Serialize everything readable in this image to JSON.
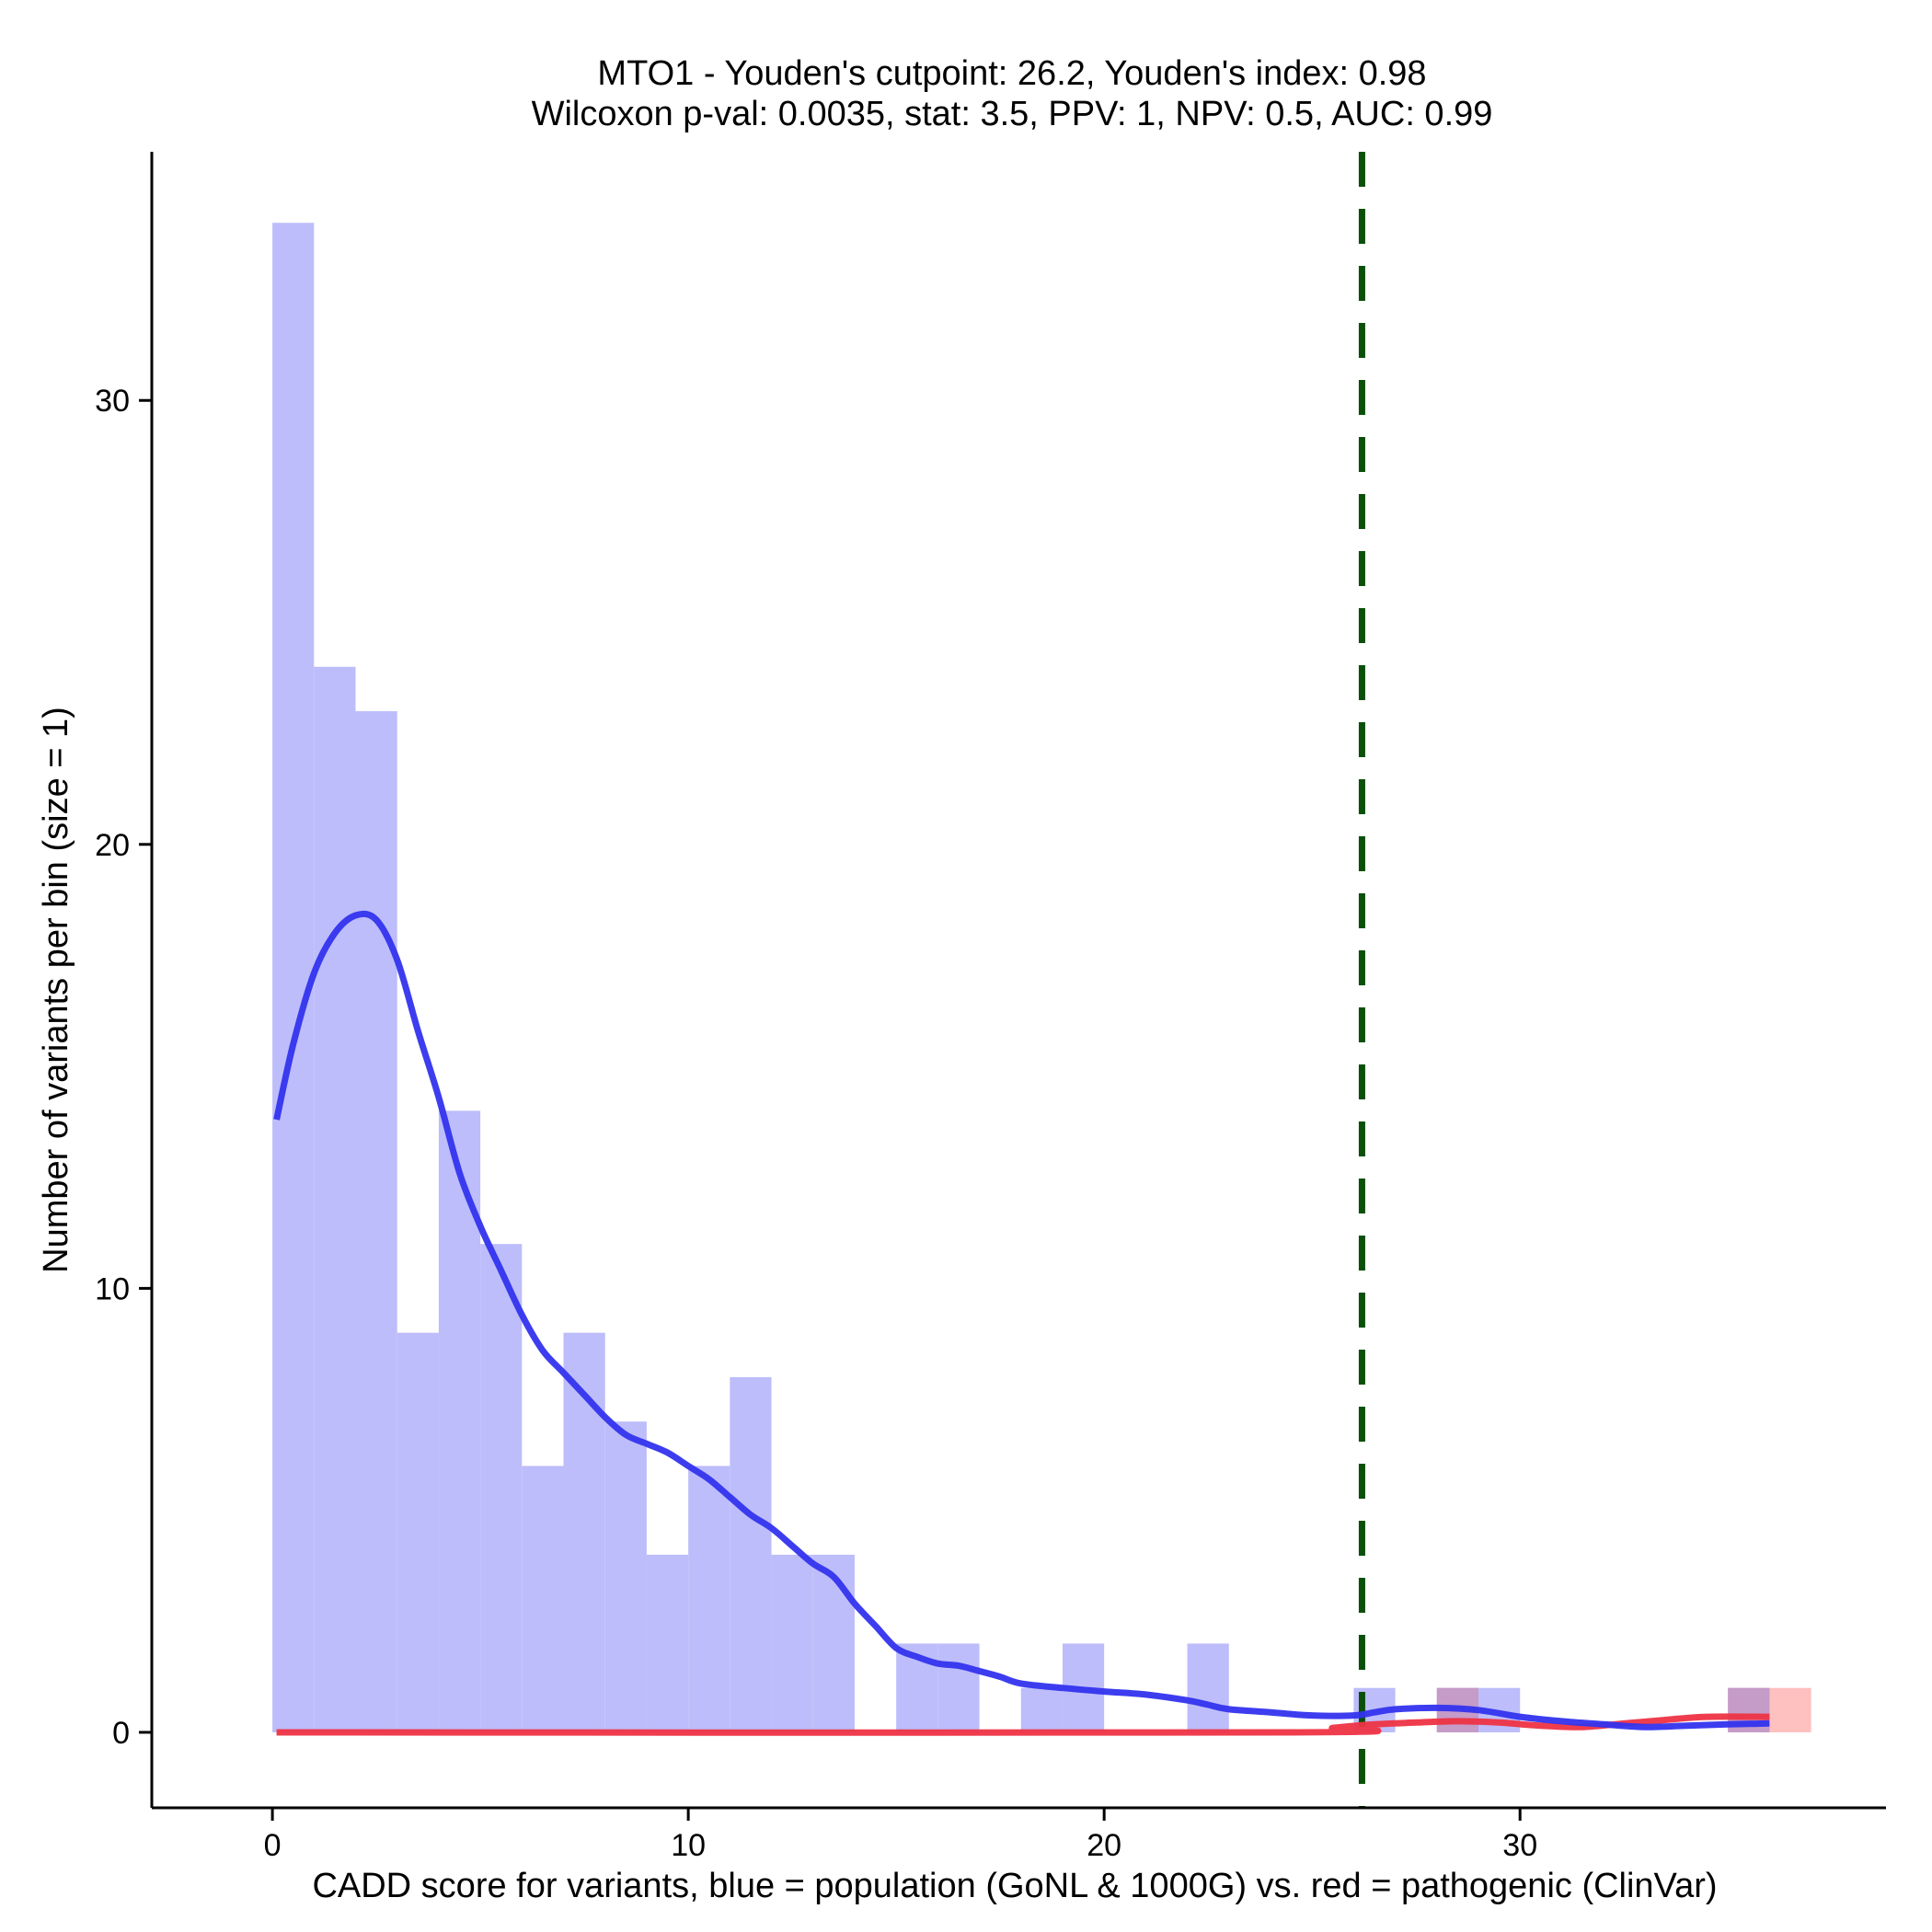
{
  "chart_data": {
    "type": "histogram",
    "title_line1": "MTO1 - Youden's cutpoint: 26.2, Youden's index: 0.98",
    "title_line2": "Wilcoxon p-val: 0.0035, stat: 3.5, PPV: 1, NPV: 0.5, AUC: 0.99",
    "xlabel": "CADD score for variants, blue = population (GoNL & 1000G) vs. red = pathogenic (ClinVar)",
    "ylabel": "Number of variants per bin (size = 1)",
    "xlim": [
      -2.9,
      38.8
    ],
    "ylim": [
      -1.7,
      35.6
    ],
    "xticks": [
      0,
      10,
      20,
      30
    ],
    "xtick_labels": [
      "0",
      "10",
      "20",
      "30"
    ],
    "yticks": [
      0,
      10,
      20,
      30
    ],
    "ytick_labels": [
      "0",
      "10",
      "20",
      "30"
    ],
    "bin_width": 1,
    "cutpoint": 26.2,
    "colors": {
      "population_fill": "#bdbdfb",
      "pathogenic_fill": "#ffc0c0",
      "overlap_fill": "#c59bc8",
      "population_line": "#3333ee",
      "pathogenic_line": "#ee3344",
      "cutpoint_line": "#0a4f0a"
    },
    "series": [
      {
        "name": "population (GoNL & 1000G)",
        "bins": [
          {
            "x0": 0,
            "count": 34
          },
          {
            "x0": 1,
            "count": 24
          },
          {
            "x0": 2,
            "count": 23
          },
          {
            "x0": 3,
            "count": 9
          },
          {
            "x0": 4,
            "count": 14
          },
          {
            "x0": 5,
            "count": 11
          },
          {
            "x0": 6,
            "count": 6
          },
          {
            "x0": 7,
            "count": 9
          },
          {
            "x0": 8,
            "count": 7
          },
          {
            "x0": 9,
            "count": 4
          },
          {
            "x0": 10,
            "count": 6
          },
          {
            "x0": 11,
            "count": 8
          },
          {
            "x0": 12,
            "count": 4
          },
          {
            "x0": 13,
            "count": 4
          },
          {
            "x0": 15,
            "count": 2
          },
          {
            "x0": 16,
            "count": 2
          },
          {
            "x0": 18,
            "count": 1
          },
          {
            "x0": 19,
            "count": 2
          },
          {
            "x0": 22,
            "count": 2
          },
          {
            "x0": 26,
            "count": 1
          },
          {
            "x0": 28,
            "count": 1
          },
          {
            "x0": 29,
            "count": 1
          },
          {
            "x0": 35,
            "count": 1
          }
        ],
        "density": [
          [
            0.1,
            13.8
          ],
          [
            0.5,
            15.5
          ],
          [
            1.0,
            17.1
          ],
          [
            1.5,
            18.0
          ],
          [
            2.0,
            18.4
          ],
          [
            2.5,
            18.3
          ],
          [
            3.0,
            17.4
          ],
          [
            3.5,
            15.8
          ],
          [
            4.0,
            14.3
          ],
          [
            4.5,
            12.6
          ],
          [
            5.0,
            11.4
          ],
          [
            5.5,
            10.4
          ],
          [
            6.0,
            9.4
          ],
          [
            6.5,
            8.6
          ],
          [
            7.0,
            8.1
          ],
          [
            7.5,
            7.6
          ],
          [
            8.0,
            7.1
          ],
          [
            8.5,
            6.7
          ],
          [
            9.0,
            6.5
          ],
          [
            9.5,
            6.3
          ],
          [
            10.0,
            6.0
          ],
          [
            10.5,
            5.7
          ],
          [
            11.0,
            5.3
          ],
          [
            11.5,
            4.9
          ],
          [
            12.0,
            4.6
          ],
          [
            12.5,
            4.2
          ],
          [
            13.0,
            3.8
          ],
          [
            13.5,
            3.5
          ],
          [
            14.0,
            2.9
          ],
          [
            14.5,
            2.4
          ],
          [
            15.0,
            1.9
          ],
          [
            15.5,
            1.7
          ],
          [
            16.0,
            1.55
          ],
          [
            16.5,
            1.5
          ],
          [
            17.0,
            1.38
          ],
          [
            17.5,
            1.25
          ],
          [
            18.0,
            1.1
          ],
          [
            19.0,
            1.0
          ],
          [
            20.0,
            0.92
          ],
          [
            21.0,
            0.85
          ],
          [
            22.0,
            0.72
          ],
          [
            22.5,
            0.62
          ],
          [
            23.0,
            0.52
          ],
          [
            24.0,
            0.45
          ],
          [
            25.0,
            0.38
          ],
          [
            26.0,
            0.38
          ],
          [
            26.5,
            0.45
          ],
          [
            27.0,
            0.52
          ],
          [
            28.0,
            0.55
          ],
          [
            29.0,
            0.5
          ],
          [
            30.0,
            0.35
          ],
          [
            31.0,
            0.25
          ],
          [
            32.0,
            0.18
          ],
          [
            33.0,
            0.12
          ],
          [
            34.0,
            0.15
          ],
          [
            35.0,
            0.18
          ],
          [
            36.0,
            0.2
          ]
        ]
      },
      {
        "name": "pathogenic (ClinVar)",
        "bins": [
          {
            "x0": 28,
            "count": 1
          },
          {
            "x0": 35,
            "count": 1
          },
          {
            "x0": 36,
            "count": 1
          }
        ],
        "density": [
          [
            0.1,
            0.0
          ],
          [
            24.5,
            0.0
          ],
          [
            25.5,
            0.1
          ],
          [
            26.5,
            0.18
          ],
          [
            27.5,
            0.22
          ],
          [
            28.5,
            0.25
          ],
          [
            29.5,
            0.22
          ],
          [
            30.5,
            0.15
          ],
          [
            31.5,
            0.12
          ],
          [
            32.5,
            0.2
          ],
          [
            33.5,
            0.28
          ],
          [
            34.5,
            0.35
          ],
          [
            36.0,
            0.35
          ]
        ]
      }
    ]
  }
}
